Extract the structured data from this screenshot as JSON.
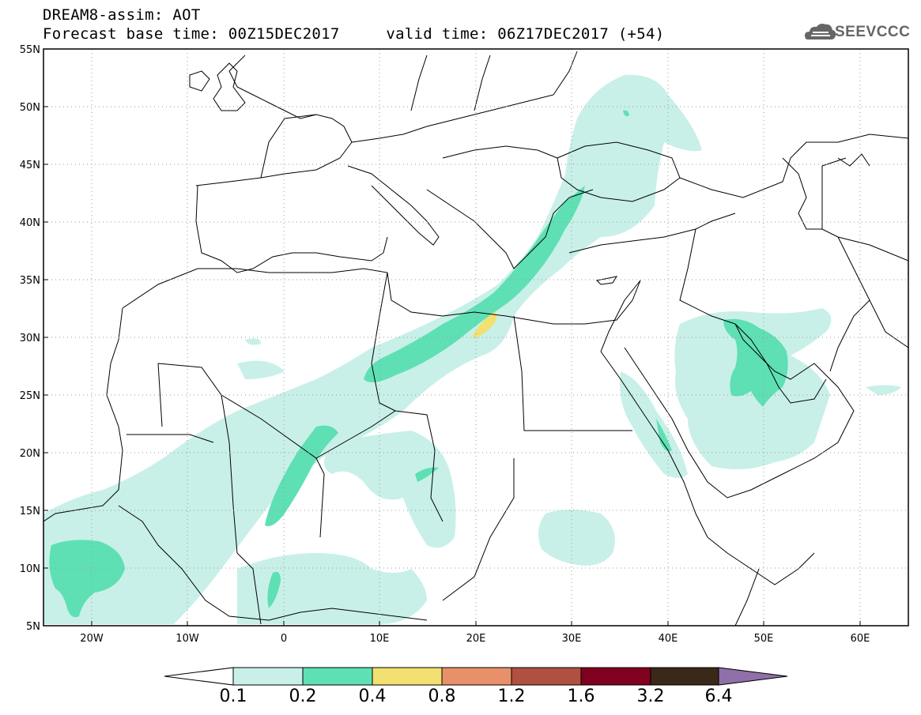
{
  "header": {
    "title_line1": "DREAM8-assim: AOT",
    "title_line2": "Forecast base time: 00Z15DEC2017     valid time: 06Z17DEC2017 (+54)",
    "logo_text": "SEEVCCC"
  },
  "map": {
    "lat_labels": [
      "55N",
      "50N",
      "45N",
      "40N",
      "35N",
      "30N",
      "25N",
      "20N",
      "15N",
      "10N",
      "5N"
    ],
    "lon_labels": [
      "20W",
      "10W",
      "0",
      "10E",
      "20E",
      "30E",
      "40E",
      "50E",
      "60E"
    ],
    "extent": {
      "lon": [
        -25,
        65
      ],
      "lat": [
        5,
        55
      ]
    }
  },
  "colorbar": {
    "levels": [
      "0.1",
      "0.2",
      "0.4",
      "0.8",
      "1.2",
      "1.6",
      "3.2",
      "6.4"
    ],
    "colors": [
      "#ffffff",
      "#c8f0e8",
      "#5ee0b4",
      "#f2e070",
      "#e8906a",
      "#b05040",
      "#800020",
      "#3a2818",
      "#9070a8"
    ]
  }
}
